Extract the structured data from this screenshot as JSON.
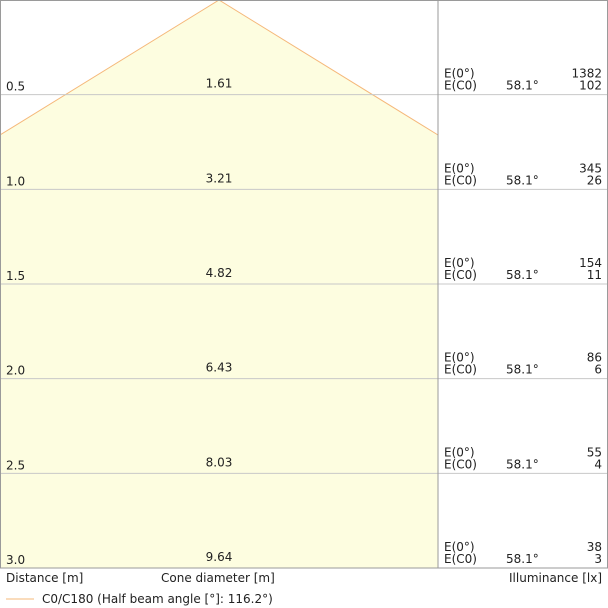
{
  "chart_data": {
    "type": "cone-diagram",
    "colors": {
      "cone_fill": "#fdfde0",
      "cone_outline": "#f5b87a",
      "grid": "#c8c8c8",
      "border": "#9a9a9a"
    },
    "rows": [
      {
        "distance": "0.5",
        "diameter": "1.61",
        "e0_label": "E(0°)",
        "ec0_label": "E(C0)",
        "angle": "58.1°",
        "e0": "1382",
        "ec0": "102"
      },
      {
        "distance": "1.0",
        "diameter": "3.21",
        "e0_label": "E(0°)",
        "ec0_label": "E(C0)",
        "angle": "58.1°",
        "e0": "345",
        "ec0": "26"
      },
      {
        "distance": "1.5",
        "diameter": "4.82",
        "e0_label": "E(0°)",
        "ec0_label": "E(C0)",
        "angle": "58.1°",
        "e0": "154",
        "ec0": "11"
      },
      {
        "distance": "2.0",
        "diameter": "6.43",
        "e0_label": "E(0°)",
        "ec0_label": "E(C0)",
        "angle": "58.1°",
        "e0": "86",
        "ec0": "6"
      },
      {
        "distance": "2.5",
        "diameter": "8.03",
        "e0_label": "E(0°)",
        "ec0_label": "E(C0)",
        "angle": "58.1°",
        "e0": "55",
        "ec0": "4"
      },
      {
        "distance": "3.0",
        "diameter": "9.64",
        "e0_label": "E(0°)",
        "ec0_label": "E(C0)",
        "angle": "58.1°",
        "e0": "38",
        "ec0": "3"
      }
    ],
    "labels": {
      "distance": "Distance [m]",
      "cone_diameter": "Cone diameter [m]",
      "illuminance": "Illuminance [lx]"
    },
    "legend": "C0/C180 (Half beam angle [°]: 116.2°)"
  }
}
